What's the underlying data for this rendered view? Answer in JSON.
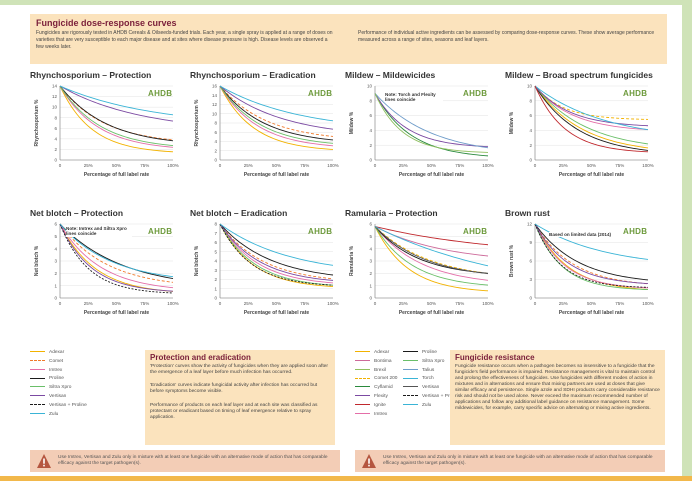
{
  "header": {
    "title": "Fungicide dose-response curves",
    "text_left": "Fungicides are rigorously tested in AHDB Cereals & Oilseeds-funded trials. Each year, a single spray is applied at a range of doses on varieties that are very susceptible to each major disease and at sites where disease pressure is high. Disease levels are observed a few weeks later.",
    "text_right": "Performance of individual active ingredients can be assessed by comparing dose-response curves. These show average performance measured across a range of sites, seasons and leaf layers."
  },
  "logo": {
    "text": "AHDB"
  },
  "common": {
    "xlabel": "Percentage of full label rate",
    "xticks": [
      "0",
      "25%",
      "50%",
      "75%",
      "100%"
    ]
  },
  "legend1": [
    {
      "name": "Adexar",
      "color": "#f2b200",
      "dash": ""
    },
    {
      "name": "Comet",
      "color": "#f07a2b",
      "dash": "3,2"
    },
    {
      "name": "Imtrex",
      "color": "#e46ea8",
      "dash": ""
    },
    {
      "name": "Proline",
      "color": "#1b1b1b",
      "dash": ""
    },
    {
      "name": "Siltra Xpro",
      "color": "#6abf69",
      "dash": ""
    },
    {
      "name": "Vertisan",
      "color": "#7b4aa2",
      "dash": ""
    },
    {
      "name": "Vertisan + Proline",
      "color": "#1b1b1b",
      "dash": "2,1.5"
    },
    {
      "name": "Zulu",
      "color": "#3ab4d6",
      "dash": ""
    }
  ],
  "legend2": [
    {
      "name": "Adexar",
      "color": "#f2b200",
      "dash": ""
    },
    {
      "name": "Bontima",
      "color": "#cd6a9a",
      "dash": ""
    },
    {
      "name": "Brexil",
      "color": "#8fbf5f",
      "dash": ""
    },
    {
      "name": "Comet 200",
      "color": "#f2b200",
      "dash": "3,2"
    },
    {
      "name": "Cyflamid",
      "color": "#2a8a3d",
      "dash": ""
    },
    {
      "name": "Flexity",
      "color": "#7b4aa2",
      "dash": ""
    },
    {
      "name": "Ignite",
      "color": "#c0282d",
      "dash": ""
    },
    {
      "name": "Imtrex",
      "color": "#e46ea8",
      "dash": ""
    },
    {
      "name": "Proline",
      "color": "#1b1b1b",
      "dash": ""
    },
    {
      "name": "Siltra Xpro",
      "color": "#6abf69",
      "dash": ""
    },
    {
      "name": "Talius",
      "color": "#6e9cc9",
      "dash": ""
    },
    {
      "name": "Torch",
      "color": "#3ab4d6",
      "dash": ""
    },
    {
      "name": "Vertisan",
      "color": "#555555",
      "dash": ""
    },
    {
      "name": "Vertisan + Proline",
      "color": "#1b1b1b",
      "dash": "2,1.5"
    },
    {
      "name": "Zulu",
      "color": "#3ab4d6",
      "dash": ""
    }
  ],
  "box_protection": {
    "title": "Protection and eradication",
    "p1": "'Protection' curves show the activity of fungicides when they are applied soon after the emergence of a leaf layer before much infection has occurred.",
    "p2": "'Eradication' curves indicate fungicidal activity after infection has occurred but before symptoms become visible.",
    "p3": "Performance of products on each leaf layer and at each site was classified as protectant or eradicant based on timing of leaf emergence relative to spray application."
  },
  "box_resistance": {
    "title": "Fungicide resistance",
    "text": "Fungicide resistance occurs when a pathogen becomes so insensitive to a fungicide that the fungicide's field performance is impaired. Resistance management is vital to maintain control and prolong the effectiveness of fungicides. Use fungicides with different modes of action in mixtures and in alternations and ensure that mixing partners are used at doses that give similar efficacy and persistence. Single azole and SDHI products carry considerable resistance risk and should not be used alone. Never exceed the maximum recommended number of applications and follow any additional label guidance on resistance management. Some mildewicides, for example, carry specific advice on alternating or mixing active ingredients."
  },
  "warning": {
    "text": "Use Imtrex, Vertisan and Zulu only in mixture with at least one fungicide with an alternative mode of action that has comparable efficacy against the target pathogen(s)."
  },
  "chart_data": [
    {
      "type": "line",
      "title": "Rhynchosporium – Protection",
      "ylabel": "Rhynchosporium %",
      "yticks": [
        0,
        2,
        4,
        6,
        8,
        10,
        12,
        14
      ],
      "ymax": 14,
      "series": [
        {
          "name": "Adexar",
          "color": "#f2b200",
          "y0": 14,
          "end": 1.2,
          "k": 3.6,
          "dash": ""
        },
        {
          "name": "Comet",
          "color": "#f07a2b",
          "y0": 14,
          "end": 3.0,
          "k": 2.6,
          "dash": "3,2"
        },
        {
          "name": "Imtrex",
          "color": "#e46ea8",
          "y0": 14,
          "end": 1.8,
          "k": 3.0,
          "dash": ""
        },
        {
          "name": "Proline",
          "color": "#1b1b1b",
          "y0": 14,
          "end": 2.6,
          "k": 2.4,
          "dash": ""
        },
        {
          "name": "Siltra Xpro",
          "color": "#6abf69",
          "y0": 14,
          "end": 2.0,
          "k": 2.8,
          "dash": ""
        },
        {
          "name": "Vertisan",
          "color": "#7b4aa2",
          "y0": 14,
          "end": 5.2,
          "k": 1.4,
          "dash": ""
        },
        {
          "name": "Zulu",
          "color": "#3ab4d6",
          "y0": 14,
          "end": 6.2,
          "k": 1.2,
          "dash": ""
        }
      ]
    },
    {
      "type": "line",
      "title": "Rhynchosporium – Eradication",
      "ylabel": "Rhynchosporium %",
      "yticks": [
        0,
        2,
        4,
        6,
        8,
        10,
        12,
        14,
        16
      ],
      "ymax": 16,
      "series": [
        {
          "name": "Adexar",
          "color": "#f2b200",
          "y0": 16,
          "end": 1.8,
          "k": 3.4,
          "dash": ""
        },
        {
          "name": "Comet",
          "color": "#f07a2b",
          "y0": 16,
          "end": 4.0,
          "k": 2.4,
          "dash": "3,2"
        },
        {
          "name": "Imtrex",
          "color": "#e46ea8",
          "y0": 16,
          "end": 2.4,
          "k": 3.0,
          "dash": ""
        },
        {
          "name": "Proline",
          "color": "#1b1b1b",
          "y0": 16,
          "end": 3.4,
          "k": 2.6,
          "dash": ""
        },
        {
          "name": "Siltra Xpro",
          "color": "#6abf69",
          "y0": 16,
          "end": 2.8,
          "k": 2.8,
          "dash": ""
        },
        {
          "name": "Vertisan",
          "color": "#7b4aa2",
          "y0": 16,
          "end": 4.8,
          "k": 1.8,
          "dash": ""
        },
        {
          "name": "Zulu",
          "color": "#3ab4d6",
          "y0": 16,
          "end": 6.0,
          "k": 1.4,
          "dash": ""
        }
      ]
    },
    {
      "type": "line",
      "title": "Mildew – Mildewicides",
      "ylabel": "Mildew %",
      "yticks": [
        0,
        2,
        4,
        6,
        8,
        10
      ],
      "ymax": 10,
      "note": "Note: Torch and Flexity lines coincide",
      "series": [
        {
          "name": "Cyflamid",
          "color": "#2a8a3d",
          "y0": 9,
          "end": 0.2,
          "k": 3.2,
          "dash": ""
        },
        {
          "name": "Flexity",
          "color": "#7b4aa2",
          "y0": 9,
          "end": 1.6,
          "k": 3.6,
          "dash": ""
        },
        {
          "name": "Talius",
          "color": "#6e9cc9",
          "y0": 9,
          "end": 0.5,
          "k": 2.0,
          "dash": ""
        },
        {
          "name": "Brexil",
          "color": "#8fbf5f",
          "y0": 9,
          "end": 0.9,
          "k": 4.2,
          "dash": ""
        }
      ]
    },
    {
      "type": "line",
      "title": "Mildew – Broad spectrum fungicides",
      "ylabel": "Mildew %",
      "yticks": [
        0,
        2,
        4,
        6,
        8,
        10
      ],
      "ymax": 10,
      "series": [
        {
          "name": "Adexar",
          "color": "#f2b200",
          "y0": 10,
          "end": 0.8,
          "k": 2.4,
          "dash": ""
        },
        {
          "name": "Comet 200",
          "color": "#f2b200",
          "y0": 10,
          "end": 5.4,
          "k": 4.0,
          "dash": "3,2"
        },
        {
          "name": "Imtrex",
          "color": "#e46ea8",
          "y0": 10,
          "end": 3.8,
          "k": 3.0,
          "dash": ""
        },
        {
          "name": "Proline",
          "color": "#1b1b1b",
          "y0": 10,
          "end": 0.6,
          "k": 2.6,
          "dash": ""
        },
        {
          "name": "Siltra Xpro",
          "color": "#6abf69",
          "y0": 10,
          "end": 1.2,
          "k": 2.2,
          "dash": ""
        },
        {
          "name": "Vertisan",
          "color": "#7b4aa2",
          "y0": 10,
          "end": 4.4,
          "k": 3.2,
          "dash": ""
        },
        {
          "name": "Zulu",
          "color": "#3ab4d6",
          "y0": 10,
          "end": 2.6,
          "k": 1.6,
          "dash": ""
        },
        {
          "name": "Ignite",
          "color": "#c0282d",
          "y0": 10,
          "end": 0.9,
          "k": 3.8,
          "dash": ""
        }
      ]
    },
    {
      "type": "line",
      "title": "Net blotch – Protection",
      "ylabel": "Net blotch %",
      "yticks": [
        0,
        1,
        2,
        3,
        4,
        5,
        6
      ],
      "ymax": 6,
      "note": "Note: Imtrex and Siltra Xpro lines coincide",
      "series": [
        {
          "name": "Adexar",
          "color": "#f2b200",
          "y0": 6,
          "end": 0.3,
          "k": 3.2,
          "dash": ""
        },
        {
          "name": "Comet",
          "color": "#f07a2b",
          "y0": 6,
          "end": 0.8,
          "k": 2.4,
          "dash": "3,2"
        },
        {
          "name": "Imtrex",
          "color": "#e46ea8",
          "y0": 6,
          "end": 0.5,
          "k": 2.8,
          "dash": ""
        },
        {
          "name": "Proline",
          "color": "#1b1b1b",
          "y0": 6,
          "end": 0.7,
          "k": 1.8,
          "dash": ""
        },
        {
          "name": "Vertisan",
          "color": "#7b4aa2",
          "y0": 6,
          "end": 0.4,
          "k": 3.6,
          "dash": ""
        },
        {
          "name": "Vertisan + Proline",
          "color": "#1b1b1b",
          "y0": 6,
          "end": 0.3,
          "k": 4.0,
          "dash": "2,1.5"
        },
        {
          "name": "Zulu",
          "color": "#3ab4d6",
          "y0": 6,
          "end": 1.2,
          "k": 2.2,
          "dash": ""
        }
      ]
    },
    {
      "type": "line",
      "title": "Net blotch – Eradication",
      "ylabel": "Net blotch %",
      "yticks": [
        0,
        1,
        2,
        3,
        4,
        5,
        6,
        7,
        8
      ],
      "ymax": 8,
      "series": [
        {
          "name": "Adexar",
          "color": "#f2b200",
          "y0": 8,
          "end": 1.0,
          "k": 3.4,
          "dash": ""
        },
        {
          "name": "Comet",
          "color": "#f07a2b",
          "y0": 8,
          "end": 1.6,
          "k": 2.6,
          "dash": "3,2"
        },
        {
          "name": "Imtrex",
          "color": "#e46ea8",
          "y0": 8,
          "end": 1.3,
          "k": 3.0,
          "dash": ""
        },
        {
          "name": "Proline",
          "color": "#1b1b1b",
          "y0": 8,
          "end": 1.8,
          "k": 2.2,
          "dash": ""
        },
        {
          "name": "Siltra Xpro",
          "color": "#6abf69",
          "y0": 8,
          "end": 1.1,
          "k": 3.2,
          "dash": ""
        },
        {
          "name": "Vertisan",
          "color": "#7b4aa2",
          "y0": 8,
          "end": 1.5,
          "k": 2.8,
          "dash": ""
        },
        {
          "name": "Vertisan + Proline",
          "color": "#1b1b1b",
          "y0": 8,
          "end": 1.2,
          "k": 3.6,
          "dash": "2,1.5"
        },
        {
          "name": "Zulu",
          "color": "#3ab4d6",
          "y0": 8,
          "end": 2.4,
          "k": 1.6,
          "dash": ""
        }
      ]
    },
    {
      "type": "line",
      "title": "Ramularia – Protection",
      "ylabel": "Ramularia %",
      "yticks": [
        0,
        1,
        2,
        3,
        4,
        5,
        6
      ],
      "ymax": 6,
      "series": [
        {
          "name": "Adexar",
          "color": "#f2b200",
          "y0": 5.8,
          "end": 0.4,
          "k": 3.4,
          "dash": ""
        },
        {
          "name": "Bontima",
          "color": "#cd6a9a",
          "y0": 5.8,
          "end": 2.8,
          "k": 1.6,
          "dash": ""
        },
        {
          "name": "Comet 200",
          "color": "#f2b200",
          "y0": 5.8,
          "end": 1.4,
          "k": 2.0,
          "dash": "3,2"
        },
        {
          "name": "Ignite",
          "color": "#c0282d",
          "y0": 5.8,
          "end": 3.3,
          "k": 0.9,
          "dash": ""
        },
        {
          "name": "Imtrex",
          "color": "#e46ea8",
          "y0": 5.8,
          "end": 1.0,
          "k": 2.4,
          "dash": ""
        },
        {
          "name": "Proline",
          "color": "#1b1b1b",
          "y0": 5.8,
          "end": 1.7,
          "k": 2.6,
          "dash": ""
        },
        {
          "name": "Siltra Xpro",
          "color": "#6abf69",
          "y0": 5.8,
          "end": 0.8,
          "k": 3.0,
          "dash": ""
        },
        {
          "name": "Vertisan",
          "color": "#555555",
          "y0": 5.8,
          "end": 1.5,
          "k": 2.2,
          "dash": ""
        },
        {
          "name": "Zulu",
          "color": "#3ab4d6",
          "y0": 5.8,
          "end": 0.0,
          "k": 0.8,
          "dash": ""
        }
      ]
    },
    {
      "type": "line",
      "title": "Brown rust",
      "ylabel": "Brown rust %",
      "yticks": [
        0,
        3,
        6,
        9,
        12
      ],
      "ymax": 12,
      "note": "Based on limited data (2014)",
      "series": [
        {
          "name": "Adexar",
          "color": "#f2b200",
          "y0": 12,
          "end": 1.0,
          "k": 3.4,
          "dash": ""
        },
        {
          "name": "Comet",
          "color": "#f07a2b",
          "y0": 12,
          "end": 1.8,
          "k": 3.0,
          "dash": "3,2"
        },
        {
          "name": "Imtrex",
          "color": "#e46ea8",
          "y0": 12,
          "end": 1.4,
          "k": 3.8,
          "dash": ""
        },
        {
          "name": "Proline",
          "color": "#1b1b1b",
          "y0": 12,
          "end": 2.2,
          "k": 2.6,
          "dash": ""
        },
        {
          "name": "Siltra Xpro",
          "color": "#6abf69",
          "y0": 12,
          "end": 1.2,
          "k": 4.2,
          "dash": ""
        },
        {
          "name": "Vertisan",
          "color": "#7b4aa2",
          "y0": 12,
          "end": 2.0,
          "k": 3.4,
          "dash": ""
        },
        {
          "name": "Vertisan + Proline",
          "color": "#1b1b1b",
          "y0": 12,
          "end": 1.6,
          "k": 4.4,
          "dash": "2,1.5"
        },
        {
          "name": "Zulu",
          "color": "#3ab4d6",
          "y0": 12,
          "end": 4.8,
          "k": 1.6,
          "dash": ""
        }
      ]
    }
  ]
}
